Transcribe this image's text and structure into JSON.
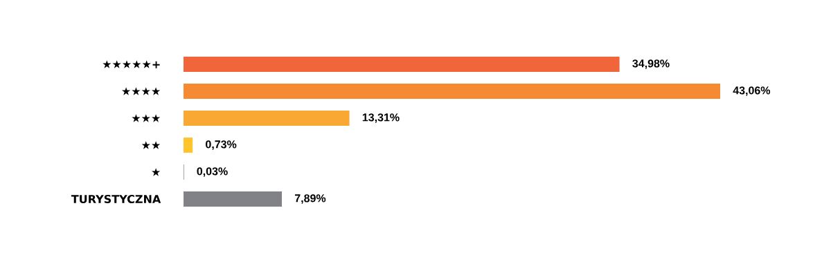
{
  "chart_data": {
    "type": "bar",
    "orientation": "horizontal",
    "categories": [
      "★★★★★+",
      "★★★★",
      "★★★",
      "★★",
      "★",
      "TURYSTYCZNA"
    ],
    "values": [
      34.98,
      43.06,
      13.31,
      0.73,
      0.03,
      7.89
    ],
    "value_labels": [
      "34,98%",
      "43,06%",
      "13,31%",
      "0,73%",
      "0,03%",
      "7,89%"
    ],
    "colors": [
      "#f0663a",
      "#f58a33",
      "#f9a834",
      "#fdc52b",
      "#555a5f",
      "#808285"
    ]
  }
}
